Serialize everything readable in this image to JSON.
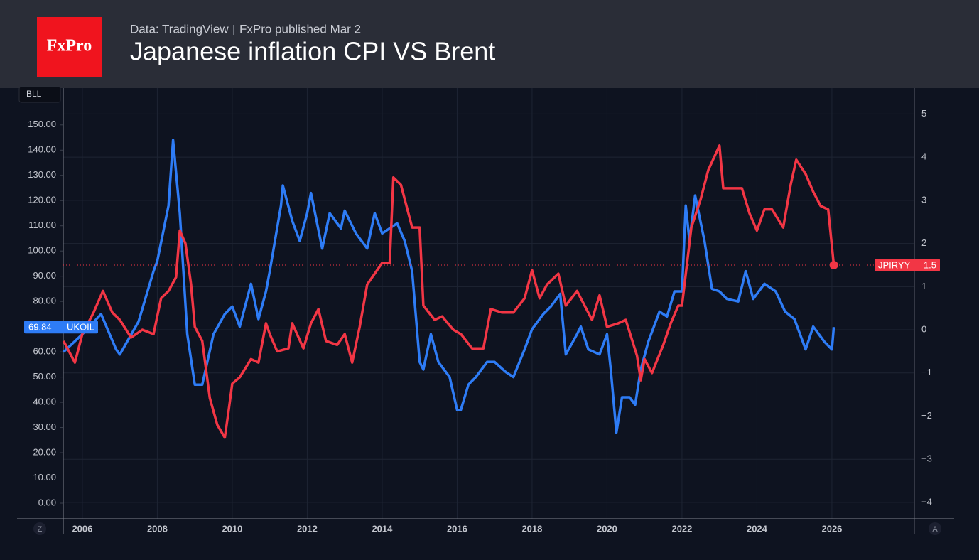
{
  "header": {
    "logo": "FxPro",
    "source": "Data: TradingView",
    "published": "FxPro published Mar 2",
    "title": "Japanese inflation CPI VS Brent"
  },
  "ui": {
    "scale_label": "BLL",
    "left_button": "Z",
    "right_button": "A"
  },
  "chart_data": {
    "type": "line",
    "grid": true,
    "xlim": [
      2005.49,
      2028.2
    ],
    "xticks": [
      2006,
      2008,
      2010,
      2012,
      2014,
      2016,
      2018,
      2020,
      2022,
      2024,
      2026
    ],
    "ylim": [
      -6.2,
      164.6
    ],
    "yticks": [
      {
        "value": 0,
        "label": "0.00"
      },
      {
        "value": 10,
        "label": "10.00"
      },
      {
        "value": 20,
        "label": "20.00"
      },
      {
        "value": 30,
        "label": "30.00"
      },
      {
        "value": 40,
        "label": "40.00"
      },
      {
        "value": 50,
        "label": "50.00"
      },
      {
        "value": 60,
        "label": "60.00"
      },
      {
        "value": 70,
        "label": "70.00"
      },
      {
        "value": 80,
        "label": "80.00"
      },
      {
        "value": 90,
        "label": "90.00"
      },
      {
        "value": 100,
        "label": "100.00"
      },
      {
        "value": 110,
        "label": "110.00"
      },
      {
        "value": 120,
        "label": "120.00"
      },
      {
        "value": 130,
        "label": "130.00"
      },
      {
        "value": 140,
        "label": "140.00"
      },
      {
        "value": 150,
        "label": "150.00"
      }
    ],
    "y2lim": [
      -4.38,
      5.6
    ],
    "y2ticks": [
      {
        "value": -4,
        "label": "−4"
      },
      {
        "value": -3,
        "label": "−3"
      },
      {
        "value": -2,
        "label": "−2"
      },
      {
        "value": -1,
        "label": "−1"
      },
      0,
      1,
      2,
      3,
      4,
      5
    ],
    "series": [
      {
        "name": "UKOIL",
        "color": "#2e7cf6",
        "axis": "y",
        "x": [
          2005.5,
          2006.0,
          2006.5,
          2006.9,
          2007.0,
          2007.5,
          2007.9,
          2008.0,
          2008.3,
          2008.42,
          2008.6,
          2008.8,
          2009.0,
          2009.2,
          2009.5,
          2009.8,
          2010.0,
          2010.2,
          2010.5,
          2010.7,
          2010.9,
          2011.0,
          2011.3,
          2011.35,
          2011.6,
          2011.8,
          2012.0,
          2012.1,
          2012.4,
          2012.6,
          2012.9,
          2013.0,
          2013.3,
          2013.6,
          2013.8,
          2014.0,
          2014.4,
          2014.6,
          2014.8,
          2015.0,
          2015.1,
          2015.3,
          2015.5,
          2015.8,
          2016.0,
          2016.1,
          2016.3,
          2016.5,
          2016.8,
          2017.0,
          2017.3,
          2017.5,
          2017.8,
          2018.0,
          2018.3,
          2018.5,
          2018.75,
          2018.9,
          2019.2,
          2019.3,
          2019.5,
          2019.8,
          2020.0,
          2020.1,
          2020.25,
          2020.4,
          2020.6,
          2020.75,
          2020.9,
          2021.1,
          2021.4,
          2021.6,
          2021.8,
          2022.0,
          2022.1,
          2022.2,
          2022.35,
          2022.6,
          2022.8,
          2023.0,
          2023.2,
          2023.5,
          2023.7,
          2023.9,
          2024.2,
          2024.5,
          2024.75,
          2025.0,
          2025.3,
          2025.5,
          2025.8,
          2026.0,
          2026.05
        ],
        "values": [
          60,
          67,
          75,
          61,
          59,
          72,
          92,
          96,
          118,
          144,
          115,
          67,
          47,
          47,
          67,
          75,
          78,
          70,
          87,
          73,
          84,
          92,
          118,
          126,
          112,
          104,
          115,
          123,
          101,
          115,
          109,
          116,
          107,
          101,
          115,
          107,
          111,
          104,
          92,
          56,
          53,
          67,
          56,
          50,
          37,
          37,
          47,
          50,
          56,
          56,
          52,
          50,
          61,
          69,
          75,
          78,
          83,
          59,
          67,
          70,
          61,
          59,
          67,
          53,
          28,
          42,
          42,
          39,
          53,
          64,
          76,
          74,
          84,
          84,
          118,
          104,
          122,
          104,
          85,
          84,
          81,
          80,
          92,
          81,
          87,
          84,
          76,
          73,
          61,
          70,
          64,
          61,
          69.84
        ]
      },
      {
        "name": "JPIRYY",
        "color": "#f23645",
        "axis": "y2",
        "x": [
          2005.5,
          2005.8,
          2006.0,
          2006.3,
          2006.55,
          2006.8,
          2007.0,
          2007.3,
          2007.6,
          2007.9,
          2008.1,
          2008.3,
          2008.5,
          2008.6,
          2008.75,
          2008.9,
          2009.0,
          2009.2,
          2009.4,
          2009.6,
          2009.8,
          2009.9,
          2010.0,
          2010.2,
          2010.5,
          2010.7,
          2010.9,
          2011.0,
          2011.2,
          2011.5,
          2011.6,
          2011.9,
          2012.1,
          2012.3,
          2012.5,
          2012.8,
          2013.0,
          2013.2,
          2013.4,
          2013.6,
          2013.8,
          2014.0,
          2014.2,
          2014.3,
          2014.5,
          2014.8,
          2015.0,
          2015.1,
          2015.4,
          2015.6,
          2015.9,
          2016.1,
          2016.4,
          2016.7,
          2016.9,
          2017.2,
          2017.5,
          2017.8,
          2018.0,
          2018.2,
          2018.4,
          2018.7,
          2018.9,
          2019.2,
          2019.6,
          2019.8,
          2020.0,
          2020.3,
          2020.5,
          2020.8,
          2020.9,
          2021.0,
          2021.2,
          2021.5,
          2021.7,
          2021.9,
          2022.0,
          2022.25,
          2022.5,
          2022.7,
          2023.0,
          2023.1,
          2023.4,
          2023.6,
          2023.8,
          2024.0,
          2024.2,
          2024.4,
          2024.7,
          2024.9,
          2025.05,
          2025.3,
          2025.5,
          2025.7,
          2025.9,
          2026.05
        ],
        "values": [
          -0.26,
          -0.76,
          -0.1,
          0.4,
          0.9,
          0.4,
          0.23,
          -0.18,
          0,
          -0.1,
          0.73,
          0.9,
          1.22,
          2.3,
          2,
          1.05,
          0.07,
          -0.26,
          -1.58,
          -2.2,
          -2.5,
          -1.9,
          -1.25,
          -1.1,
          -0.68,
          -0.76,
          0.15,
          -0.1,
          -0.5,
          -0.43,
          0.15,
          -0.43,
          0.15,
          0.48,
          -0.26,
          -0.35,
          -0.1,
          -0.76,
          0.07,
          1.05,
          1.3,
          1.55,
          1.55,
          3.53,
          3.36,
          2.37,
          2.37,
          0.56,
          0.23,
          0.31,
          0,
          -0.1,
          -0.43,
          -0.43,
          0.48,
          0.4,
          0.4,
          0.73,
          1.38,
          0.73,
          1.05,
          1.3,
          0.56,
          0.9,
          0.23,
          0.8,
          0.07,
          0.15,
          0.23,
          -0.6,
          -1.17,
          -0.68,
          -1,
          -0.35,
          0.15,
          0.56,
          0.56,
          2.37,
          3.03,
          3.7,
          4.27,
          3.28,
          3.28,
          3.28,
          2.7,
          2.3,
          2.79,
          2.79,
          2.37,
          3.36,
          3.94,
          3.61,
          3.2,
          2.87,
          2.79,
          1.5
        ]
      }
    ]
  }
}
